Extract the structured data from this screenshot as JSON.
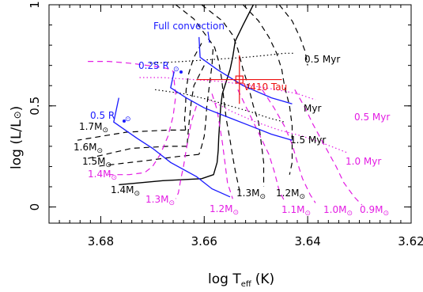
{
  "chart_data": {
    "type": "line",
    "xlabel": "log T",
    "xlabel_sub": "eff",
    "xlabel_unit": "(K)",
    "ylabel": "log (L/L",
    "ylabel_end": ")",
    "xlim": [
      3.69,
      3.62
    ],
    "ylim": [
      -0.08,
      1.0
    ],
    "x_ticks": [
      3.68,
      3.66,
      3.64,
      3.62
    ],
    "y_ticks": [
      0,
      0.5,
      1
    ],
    "x_tick_labels": [
      "3.68",
      "3.66",
      "3.64",
      "3.62"
    ],
    "y_tick_labels": [
      "0",
      "0.5",
      "1"
    ],
    "colors": {
      "black": "#000000",
      "blue": "#1a1aff",
      "magenta": "#e31ce3",
      "red": "#ee1111"
    },
    "black_tracks": [
      {
        "points": [
          [
            3.6605,
            1.0
          ],
          [
            3.6565,
            0.92
          ],
          [
            3.6545,
            0.85
          ],
          [
            3.6535,
            0.78
          ],
          [
            3.6525,
            0.68
          ],
          [
            3.6515,
            0.6
          ],
          [
            3.6505,
            0.5
          ],
          [
            3.6495,
            0.42
          ],
          [
            3.649,
            0.32
          ],
          [
            3.6485,
            0.22
          ],
          [
            3.6485,
            0.1
          ]
        ]
      },
      {
        "points": [
          [
            3.6525,
            1.0
          ],
          [
            3.6495,
            0.92
          ],
          [
            3.6475,
            0.84
          ],
          [
            3.646,
            0.76
          ],
          [
            3.645,
            0.68
          ],
          [
            3.6445,
            0.6
          ],
          [
            3.6435,
            0.5
          ],
          [
            3.643,
            0.4
          ],
          [
            3.643,
            0.3
          ],
          [
            3.643,
            0.22
          ],
          [
            3.6435,
            0.16
          ]
        ]
      },
      {
        "points": [
          [
            3.6455,
            1.0
          ],
          [
            3.643,
            0.92
          ],
          [
            3.6415,
            0.84
          ],
          [
            3.6405,
            0.77
          ],
          [
            3.64,
            0.7
          ]
        ]
      },
      {
        "points": [
          [
            3.6655,
            1.0
          ],
          [
            3.662,
            0.93
          ],
          [
            3.66,
            0.86
          ],
          [
            3.658,
            0.79
          ],
          [
            3.6572,
            0.72
          ],
          [
            3.6566,
            0.63
          ],
          [
            3.6562,
            0.53
          ],
          [
            3.6557,
            0.43
          ],
          [
            3.655,
            0.33
          ],
          [
            3.6545,
            0.25
          ],
          [
            3.654,
            0.18
          ],
          [
            3.6535,
            0.12
          ],
          [
            3.653,
            0.06
          ]
        ]
      },
      {
        "points": [
          [
            3.6605,
            0.81
          ],
          [
            3.662,
            0.74
          ],
          [
            3.663,
            0.66
          ],
          [
            3.6635,
            0.58
          ],
          [
            3.6636,
            0.5
          ],
          [
            3.6638,
            0.43
          ],
          [
            3.6636,
            0.38
          ]
        ]
      },
      {
        "points": [
          [
            3.6636,
            0.38
          ],
          [
            3.667,
            0.38
          ],
          [
            3.675,
            0.37
          ],
          [
            3.6845,
            0.33
          ]
        ]
      },
      {
        "points": [
          [
            3.66,
            0.7
          ],
          [
            3.662,
            0.6
          ],
          [
            3.6625,
            0.52
          ],
          [
            3.6628,
            0.45
          ],
          [
            3.663,
            0.4
          ],
          [
            3.6632,
            0.34
          ],
          [
            3.6633,
            0.3
          ]
        ]
      },
      {
        "points": [
          [
            3.6633,
            0.3
          ],
          [
            3.667,
            0.3
          ],
          [
            3.674,
            0.29
          ],
          [
            3.6825,
            0.24
          ]
        ]
      },
      {
        "points": [
          [
            3.6583,
            0.78
          ],
          [
            3.6585,
            0.7
          ],
          [
            3.659,
            0.6
          ],
          [
            3.6595,
            0.5
          ],
          [
            3.6597,
            0.42
          ],
          [
            3.66,
            0.35
          ],
          [
            3.6605,
            0.3
          ],
          [
            3.661,
            0.26
          ]
        ]
      },
      {
        "points": [
          [
            3.661,
            0.26
          ],
          [
            3.665,
            0.25
          ],
          [
            3.671,
            0.23
          ],
          [
            3.681,
            0.2
          ]
        ]
      }
    ],
    "solid_track": {
      "points": [
        [
          3.6505,
          1.0
        ],
        [
          3.6525,
          0.9
        ],
        [
          3.654,
          0.82
        ],
        [
          3.6545,
          0.74
        ],
        [
          3.655,
          0.68
        ],
        [
          3.6565,
          0.56
        ],
        [
          3.6568,
          0.5
        ],
        [
          3.657,
          0.42
        ],
        [
          3.6572,
          0.34
        ],
        [
          3.6573,
          0.28
        ],
        [
          3.6575,
          0.22
        ],
        [
          3.6582,
          0.16
        ],
        [
          3.6605,
          0.14
        ],
        [
          3.668,
          0.13
        ],
        [
          3.6765,
          0.11
        ]
      ]
    },
    "black_isochrones": [
      {
        "points": [
          [
            3.6705,
            0.71
          ],
          [
            3.664,
            0.72
          ],
          [
            3.658,
            0.73
          ],
          [
            3.652,
            0.74
          ],
          [
            3.648,
            0.75
          ],
          [
            3.6445,
            0.76
          ],
          [
            3.6425,
            0.76
          ]
        ]
      },
      {
        "points": [
          [
            3.6695,
            0.58
          ],
          [
            3.664,
            0.56
          ],
          [
            3.659,
            0.53
          ],
          [
            3.655,
            0.5
          ],
          [
            3.651,
            0.47
          ],
          [
            3.6475,
            0.44
          ],
          [
            3.6445,
            0.42
          ]
        ]
      }
    ],
    "magenta_tracks": [
      {
        "points": [
          [
            3.6825,
            0.72
          ],
          [
            3.6785,
            0.72
          ],
          [
            3.674,
            0.71
          ],
          [
            3.671,
            0.7
          ],
          [
            3.668,
            0.69
          ],
          [
            3.6665,
            0.68
          ],
          [
            3.666,
            0.67
          ],
          [
            3.6655,
            0.55
          ],
          [
            3.666,
            0.45
          ],
          [
            3.667,
            0.35
          ],
          [
            3.6685,
            0.26
          ],
          [
            3.67,
            0.2
          ],
          [
            3.6715,
            0.17
          ],
          [
            3.6745,
            0.16
          ],
          [
            3.6785,
            0.16
          ]
        ]
      },
      {
        "points": [
          [
            3.6615,
            0.5
          ],
          [
            3.6625,
            0.42
          ],
          [
            3.663,
            0.35
          ],
          [
            3.6635,
            0.28
          ],
          [
            3.664,
            0.2
          ],
          [
            3.6645,
            0.14
          ],
          [
            3.665,
            0.07
          ],
          [
            3.6655,
            0.04
          ]
        ]
      },
      {
        "points": [
          [
            3.6585,
            0.56
          ],
          [
            3.6575,
            0.48
          ],
          [
            3.657,
            0.4
          ],
          [
            3.6565,
            0.32
          ],
          [
            3.656,
            0.22
          ],
          [
            3.6555,
            0.12
          ],
          [
            3.6545,
            0.04
          ]
        ]
      },
      {
        "points": [
          [
            3.6535,
            0.58
          ],
          [
            3.652,
            0.5
          ],
          [
            3.6505,
            0.42
          ],
          [
            3.649,
            0.34
          ],
          [
            3.6475,
            0.26
          ],
          [
            3.6465,
            0.18
          ],
          [
            3.6455,
            0.08
          ],
          [
            3.6445,
            0.03
          ]
        ]
      },
      {
        "points": [
          [
            3.6488,
            0.58
          ],
          [
            3.6465,
            0.49
          ],
          [
            3.6445,
            0.4
          ],
          [
            3.643,
            0.31
          ],
          [
            3.642,
            0.22
          ],
          [
            3.641,
            0.14
          ],
          [
            3.6395,
            0.06
          ],
          [
            3.6385,
            0.02
          ]
        ]
      },
      {
        "points": [
          [
            3.6425,
            0.58
          ],
          [
            3.6405,
            0.49
          ],
          [
            3.639,
            0.41
          ],
          [
            3.6375,
            0.34
          ],
          [
            3.636,
            0.27
          ],
          [
            3.6345,
            0.2
          ],
          [
            3.633,
            0.12
          ],
          [
            3.631,
            0.05
          ],
          [
            3.6295,
            0.01
          ]
        ]
      }
    ],
    "magenta_isochrones": [
      {
        "points": [
          [
            3.6725,
            0.64
          ],
          [
            3.668,
            0.64
          ],
          [
            3.662,
            0.63
          ],
          [
            3.6565,
            0.62
          ],
          [
            3.651,
            0.6
          ],
          [
            3.646,
            0.58
          ],
          [
            3.642,
            0.56
          ],
          [
            3.6385,
            0.53
          ]
        ]
      },
      {
        "points": [
          [
            3.659,
            0.53
          ],
          [
            3.6545,
            0.47
          ],
          [
            3.65,
            0.42
          ],
          [
            3.6455,
            0.38
          ],
          [
            3.641,
            0.35
          ],
          [
            3.6365,
            0.31
          ],
          [
            3.6325,
            0.27
          ]
        ]
      }
    ],
    "blue_lines": [
      {
        "points": [
          [
            3.661,
            0.84
          ],
          [
            3.6608,
            0.74
          ],
          [
            3.6575,
            0.68
          ],
          [
            3.6525,
            0.6
          ],
          [
            3.647,
            0.54
          ],
          [
            3.643,
            0.51
          ]
        ]
      },
      {
        "points": [
          [
            3.6658,
            0.67
          ],
          [
            3.6665,
            0.59
          ],
          [
            3.6635,
            0.54
          ],
          [
            3.66,
            0.49
          ],
          [
            3.655,
            0.44
          ],
          [
            3.651,
            0.4
          ],
          [
            3.647,
            0.36
          ],
          [
            3.643,
            0.33
          ]
        ]
      },
      {
        "points": [
          [
            3.6765,
            0.54
          ],
          [
            3.6775,
            0.42
          ],
          [
            3.673,
            0.34
          ],
          [
            3.67,
            0.29
          ],
          [
            3.6665,
            0.22
          ],
          [
            3.6615,
            0.15
          ],
          [
            3.6585,
            0.09
          ],
          [
            3.655,
            0.05
          ]
        ]
      }
    ],
    "data_point": {
      "x": 3.6532,
      "y": 0.63,
      "x_err": [
        3.6615,
        3.645
      ],
      "y_err": [
        0.75,
        0.51
      ]
    },
    "labels": {
      "full_convection": {
        "text": "Full convection",
        "color": "blue"
      },
      "r025": {
        "text": "0.25 R",
        "color": "blue"
      },
      "r05": {
        "text": "0.5 R",
        "color": "blue"
      },
      "v410": {
        "text": "V410 Tau",
        "color": "red"
      },
      "myr05_black": {
        "text": "0.5 Myr",
        "color": "black"
      },
      "myr_black": {
        "text": "Myr",
        "color": "black"
      },
      "myr15_black": {
        "text": "1.5 Myr",
        "color": "black"
      },
      "myr05_mag": {
        "text": "0.5 Myr",
        "color": "magenta"
      },
      "myr10_mag": {
        "text": "1.0 Myr",
        "color": "magenta"
      }
    },
    "mass_labels": [
      {
        "text": "1.7M",
        "color": "black"
      },
      {
        "text": "1.6M",
        "color": "black"
      },
      {
        "text": "1.5M",
        "color": "black"
      },
      {
        "text": "1.4M",
        "color": "magenta"
      },
      {
        "text": "1.4M",
        "color": "black"
      },
      {
        "text": "1.3M",
        "color": "magenta"
      },
      {
        "text": "1.2M",
        "color": "magenta"
      },
      {
        "text": "1.3M",
        "color": "black"
      },
      {
        "text": "1.2M",
        "color": "black"
      },
      {
        "text": "1.1M",
        "color": "magenta"
      },
      {
        "text": "1.0M",
        "color": "magenta"
      },
      {
        "text": "0.9M",
        "color": "magenta"
      }
    ]
  }
}
